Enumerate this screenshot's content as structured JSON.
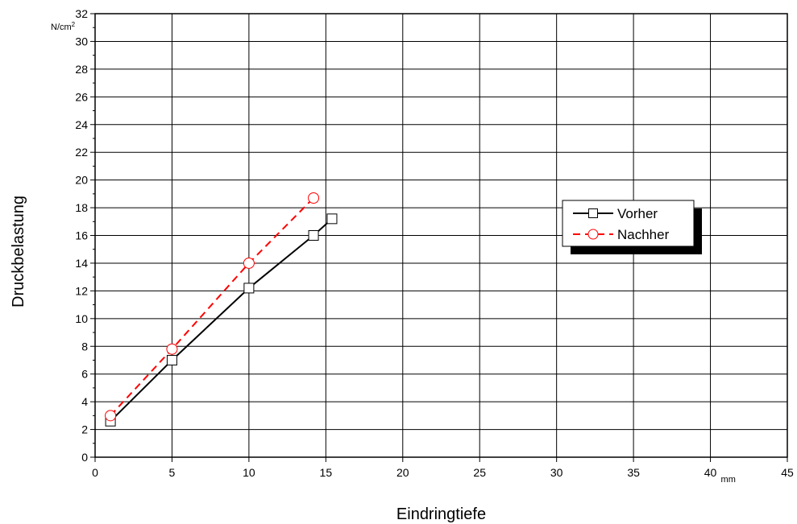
{
  "chart_data": {
    "type": "line",
    "title": "",
    "xlabel": "Eindringtiefe",
    "ylabel": "Druckbelastung",
    "x_unit": "mm",
    "y_unit_base": "N/cm",
    "y_unit_exp": "2",
    "xlim": [
      0,
      45
    ],
    "ylim": [
      0,
      32
    ],
    "xticks": [
      0,
      5,
      10,
      15,
      20,
      25,
      30,
      35,
      40,
      45
    ],
    "yticks": [
      0,
      2,
      4,
      6,
      8,
      10,
      12,
      14,
      16,
      18,
      20,
      22,
      24,
      26,
      28,
      30,
      32
    ],
    "xtick_labels": [
      "0",
      "5",
      "10",
      "15",
      "20",
      "25",
      "30",
      "35",
      "40",
      "45"
    ],
    "ytick_labels": [
      "0",
      "2",
      "4",
      "6",
      "8",
      "10",
      "12",
      "14",
      "16",
      "18",
      "20",
      "22",
      "24",
      "26",
      "28",
      "30",
      "32"
    ],
    "grid": true,
    "legend_position": "right",
    "series": [
      {
        "name": "Vorher",
        "color": "#000000",
        "line": "solid",
        "marker": "square",
        "points": [
          {
            "x": 1,
            "y": 2.6
          },
          {
            "x": 5,
            "y": 7.0
          },
          {
            "x": 10,
            "y": 12.2
          },
          {
            "x": 14.2,
            "y": 16.0
          },
          {
            "x": 15.4,
            "y": 17.2
          }
        ]
      },
      {
        "name": "Nachher",
        "color": "#ff0000",
        "line": "dashed",
        "marker": "circle",
        "points": [
          {
            "x": 1,
            "y": 3.0
          },
          {
            "x": 5,
            "y": 7.8
          },
          {
            "x": 10,
            "y": 14.0
          },
          {
            "x": 14.2,
            "y": 18.7
          }
        ]
      }
    ]
  }
}
